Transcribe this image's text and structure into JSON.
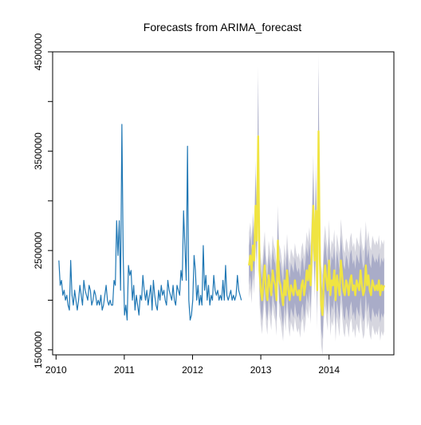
{
  "chart_data": {
    "type": "line",
    "title": "Forecasts from ARIMA_forecast",
    "xlabel": "",
    "ylabel": "",
    "xlim": [
      2009.95,
      2014.95
    ],
    "ylim": [
      1450000,
      4500000
    ],
    "x_ticks": [
      2010,
      2011,
      2012,
      2013,
      2014
    ],
    "x_tick_labels": [
      "2010",
      "2011",
      "2012",
      "2013",
      "2014"
    ],
    "y_ticks": [
      1500000,
      2000000,
      2500000,
      3000000,
      3500000,
      4000000,
      4500000
    ],
    "y_tick_labels": [
      "1500000",
      "",
      "2500000",
      "",
      "3500000",
      "",
      "4500000"
    ],
    "grid": false,
    "legend": "none",
    "colors": {
      "observed": "#1f77b4",
      "forecast": "#f0e442",
      "band_80": "#a9acc8",
      "band_95": "#d6d6df",
      "axis": "#000000"
    },
    "observed": {
      "start": 2010.0417,
      "freq": 52,
      "values": [
        2400000,
        2150000,
        2200000,
        2050000,
        2100000,
        2000000,
        2050000,
        1950000,
        1900000,
        2400000,
        2050000,
        1950000,
        2100000,
        2000000,
        1900000,
        2000000,
        2150000,
        2050000,
        1950000,
        2200000,
        2100000,
        2050000,
        2000000,
        2150000,
        2100000,
        1950000,
        2000000,
        2100000,
        2050000,
        1950000,
        2000000,
        1950000,
        2050000,
        1900000,
        1950000,
        2050000,
        2150000,
        2000000,
        1950000,
        2000000,
        1950000,
        1950000,
        2200000,
        2150000,
        2800000,
        2450000,
        2800000,
        2100000,
        3770000,
        2450000,
        1850000,
        1950000,
        1800000,
        2350000,
        2250000,
        2300000,
        2000000,
        2150000,
        1900000,
        2050000,
        1950000,
        1850000,
        2050000,
        2000000,
        2250000,
        2100000,
        2000000,
        2100000,
        1950000,
        2050000,
        2150000,
        1900000,
        2200000,
        2050000,
        1950000,
        1900000,
        2100000,
        2000000,
        2150000,
        2050000,
        2100000,
        2000000,
        1950000,
        2200000,
        2100000,
        2050000,
        2000000,
        2150000,
        2000000,
        1950000,
        2150000,
        2100000,
        2050000,
        2300000,
        2200000,
        2900000,
        2550000,
        2200000,
        3550000,
        2000000,
        1800000,
        1850000,
        2000000,
        2450000,
        2300000,
        2000000,
        2150000,
        1950000,
        2050000,
        1950000,
        2550000,
        2100000,
        2250000,
        2000000,
        2150000,
        1950000,
        2050000,
        2000000,
        2250000,
        2100000,
        2050000,
        2100000,
        2000000,
        2050000,
        2000000,
        2200000,
        2000000,
        2350000,
        2050000,
        2000000,
        2050000,
        2100000,
        2000000,
        2050000,
        2000000,
        2050000,
        2250000,
        2100000,
        2050000,
        2000000
      ]
    },
    "forecast": {
      "start": 2012.8269,
      "freq": 52,
      "values": [
        2350000,
        2450000,
        2300000,
        2550000,
        2400000,
        2950000,
        2600000,
        3650000,
        2300000,
        2100000,
        2000000,
        2200000,
        2350000,
        2100000,
        2000000,
        2250000,
        2150000,
        2050000,
        2300000,
        2200000,
        2150000,
        2000000,
        2600000,
        2200000,
        2150000,
        2050000,
        1950000,
        2200000,
        2050000,
        2300000,
        2100000,
        2000000,
        2150000,
        2100000,
        2050000,
        2200000,
        2100000,
        2050000,
        2100000,
        2000000,
        2150000,
        2200000,
        2050000,
        2150000,
        2300000,
        2200000,
        2350000,
        2150000,
        2550000,
        2950000,
        2400000,
        2900000,
        2100000,
        3700000,
        2400000,
        1950000,
        1850000,
        2200000,
        2350000,
        2200000,
        2100000,
        2400000,
        2050000,
        2200000,
        2150000,
        2300000,
        2000000,
        2250000,
        2150000,
        2050000,
        2400000,
        2250000,
        2100000,
        2050000,
        2200000,
        2150000,
        2050000,
        2200000,
        2250000,
        2100000,
        2150000,
        2050000,
        2200000,
        2150000,
        2100000,
        2300000,
        2150000,
        2050000,
        2100000,
        2350000,
        2150000,
        2250000,
        2100000,
        2050000,
        2200000,
        2150000,
        2100000,
        2150000,
        2100000,
        2200000,
        2050000,
        2150000,
        2100000,
        2150000
      ],
      "lo80_offset": 200000,
      "hi80_offset": 200000,
      "lo95_offset": 330000,
      "hi95_offset": 330000,
      "band_growth": 0.4
    }
  }
}
